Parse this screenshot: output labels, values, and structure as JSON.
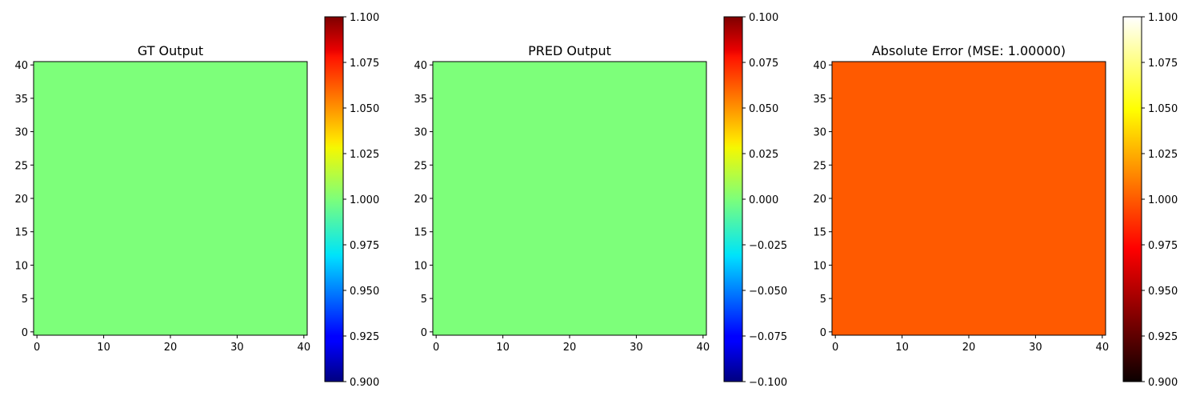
{
  "chart_data": [
    {
      "type": "heatmap",
      "title": "GT Output",
      "grid_value": 1.0,
      "colormap": "jet",
      "fill_color": "#7dff7a",
      "xlim": [
        -0.5,
        40.5
      ],
      "ylim": [
        -0.5,
        40.5
      ],
      "xticks": [
        0,
        10,
        20,
        30,
        40
      ],
      "yticks": [
        0,
        5,
        10,
        15,
        20,
        25,
        30,
        35,
        40
      ],
      "colorbar": {
        "range": [
          0.9,
          1.1
        ],
        "ticks": [
          "0.900",
          "0.925",
          "0.950",
          "0.975",
          "1.000",
          "1.025",
          "1.050",
          "1.075",
          "1.100"
        ]
      }
    },
    {
      "type": "heatmap",
      "title": "PRED Output",
      "grid_value": 0.0,
      "colormap": "jet",
      "fill_color": "#7dff7a",
      "xlim": [
        -0.5,
        40.5
      ],
      "ylim": [
        -0.5,
        40.5
      ],
      "xticks": [
        0,
        10,
        20,
        30,
        40
      ],
      "yticks": [
        0,
        5,
        10,
        15,
        20,
        25,
        30,
        35,
        40
      ],
      "colorbar": {
        "range": [
          -0.1,
          0.1
        ],
        "ticks": [
          "−0.100",
          "−0.075",
          "−0.050",
          "−0.025",
          "0.000",
          "0.025",
          "0.050",
          "0.075",
          "0.100"
        ]
      }
    },
    {
      "type": "heatmap",
      "title": "Absolute Error (MSE: 1.00000)",
      "grid_value": 1.0,
      "colormap": "hot",
      "fill_color": "#ff5a00",
      "xlim": [
        -0.5,
        40.5
      ],
      "ylim": [
        -0.5,
        40.5
      ],
      "xticks": [
        0,
        10,
        20,
        30,
        40
      ],
      "yticks": [
        0,
        5,
        10,
        15,
        20,
        25,
        30,
        35,
        40
      ],
      "colorbar": {
        "range": [
          0.9,
          1.1
        ],
        "ticks": [
          "0.900",
          "0.925",
          "0.950",
          "0.975",
          "1.000",
          "1.025",
          "1.050",
          "1.075",
          "1.100"
        ]
      }
    }
  ]
}
